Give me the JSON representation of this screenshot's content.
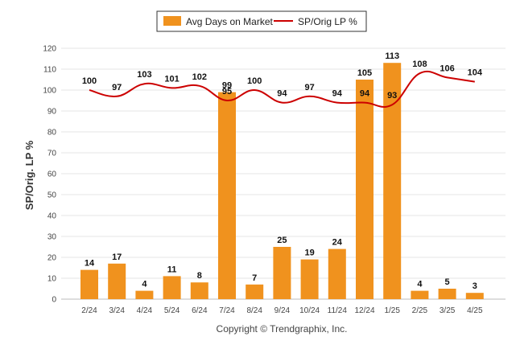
{
  "chart_data": {
    "type": "bar",
    "categories": [
      "2/24",
      "3/24",
      "4/24",
      "5/24",
      "6/24",
      "7/24",
      "8/24",
      "9/24",
      "10/24",
      "11/24",
      "12/24",
      "1/25",
      "2/25",
      "3/25",
      "4/25"
    ],
    "series": [
      {
        "name": "Avg Days on Market",
        "kind": "bar",
        "color": "#F0921E",
        "values": [
          14,
          17,
          4,
          11,
          8,
          99,
          7,
          25,
          19,
          24,
          105,
          113,
          4,
          5,
          3
        ]
      },
      {
        "name": "SP/Orig LP %",
        "kind": "line",
        "color": "#CC0000",
        "values": [
          100,
          97,
          103,
          101,
          102,
          95,
          100,
          94,
          97,
          94,
          94,
          93,
          108,
          106,
          104
        ]
      }
    ],
    "ylabel": "SP/Orig. LP %",
    "ylim": [
      0,
      120
    ],
    "yticks": [
      0,
      10,
      20,
      30,
      40,
      50,
      60,
      70,
      80,
      90,
      100,
      110,
      120
    ],
    "grid": true,
    "legend_position": "top-center"
  },
  "footer": {
    "copyright": "Copyright © Trendgraphix, Inc."
  }
}
